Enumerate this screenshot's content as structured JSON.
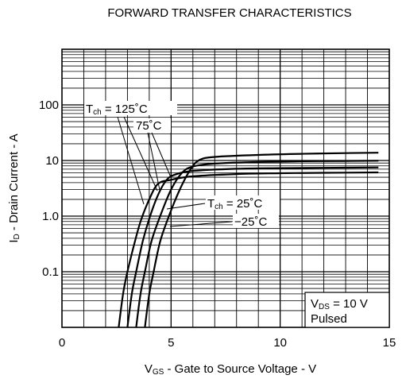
{
  "chart_data": {
    "type": "line",
    "title": "FORWARD TRANSFER CHARACTERISTICS",
    "xlabel": {
      "main": "V",
      "sub": "GS",
      "rest": " - Gate to Source Voltage - V"
    },
    "ylabel": {
      "main": "I",
      "sub": "D",
      "rest": " - Drain Current - A"
    },
    "xlim": [
      0,
      15
    ],
    "ylim": [
      0.01,
      1000
    ],
    "y_scale": "log",
    "grid": true,
    "x_ticks": [
      {
        "value": 0,
        "label": "0"
      },
      {
        "value": 5,
        "label": "5"
      },
      {
        "value": 10,
        "label": "10"
      },
      {
        "value": 15,
        "label": "15"
      }
    ],
    "y_ticks": [
      {
        "value": 0.1,
        "label": "0.1"
      },
      {
        "value": 1,
        "label": "1.0"
      },
      {
        "value": 10,
        "label": "10"
      },
      {
        "value": 100,
        "label": "100"
      }
    ],
    "series": [
      {
        "name": "Tch = 125°C",
        "x": [
          2.6,
          2.8,
          3.0,
          3.3,
          3.6,
          4.0,
          4.4,
          5.0,
          6.0,
          8.0,
          10.0,
          12.0,
          14.5
        ],
        "y": [
          0.01,
          0.04,
          0.1,
          0.3,
          0.8,
          2.0,
          3.8,
          4.5,
          5.2,
          5.7,
          5.9,
          6.0,
          6.1
        ]
      },
      {
        "name": "75°C",
        "x": [
          3.0,
          3.2,
          3.4,
          3.7,
          4.0,
          4.4,
          4.8,
          5.2,
          6.0,
          8.0,
          10.0,
          12.0,
          14.5
        ],
        "y": [
          0.01,
          0.04,
          0.1,
          0.35,
          0.9,
          2.4,
          4.5,
          5.6,
          6.5,
          7.1,
          7.3,
          7.4,
          7.5
        ]
      },
      {
        "name": "Tch = 25°C",
        "x": [
          3.4,
          3.6,
          3.8,
          4.1,
          4.5,
          5.0,
          5.5,
          6.0,
          7.0,
          9.0,
          11.0,
          13.0,
          14.5
        ],
        "y": [
          0.01,
          0.04,
          0.1,
          0.35,
          1.0,
          3.0,
          6.0,
          7.8,
          8.8,
          9.4,
          9.7,
          9.8,
          9.9
        ]
      },
      {
        "name": "−25°C",
        "x": [
          3.8,
          4.0,
          4.2,
          4.5,
          4.9,
          5.4,
          5.9,
          6.3,
          7.0,
          9.0,
          11.0,
          13.0,
          14.5
        ],
        "y": [
          0.01,
          0.04,
          0.1,
          0.35,
          1.0,
          3.0,
          7.0,
          10.2,
          11.6,
          12.6,
          13.2,
          13.6,
          13.8
        ]
      }
    ],
    "labels": [
      {
        "text_main": "T",
        "text_sub": "ch",
        "text_rest": " = 125˚C"
      },
      {
        "text_main": "75˚C",
        "text_sub": "",
        "text_rest": ""
      },
      {
        "text_main": "T",
        "text_sub": "ch",
        "text_rest": " = 25˚C"
      },
      {
        "text_main": "−25˚C",
        "text_sub": "",
        "text_rest": ""
      }
    ],
    "conditions": {
      "line1": {
        "main": "V",
        "sub": "DS",
        "rest": " = 10 V"
      },
      "line2": "Pulsed"
    }
  }
}
